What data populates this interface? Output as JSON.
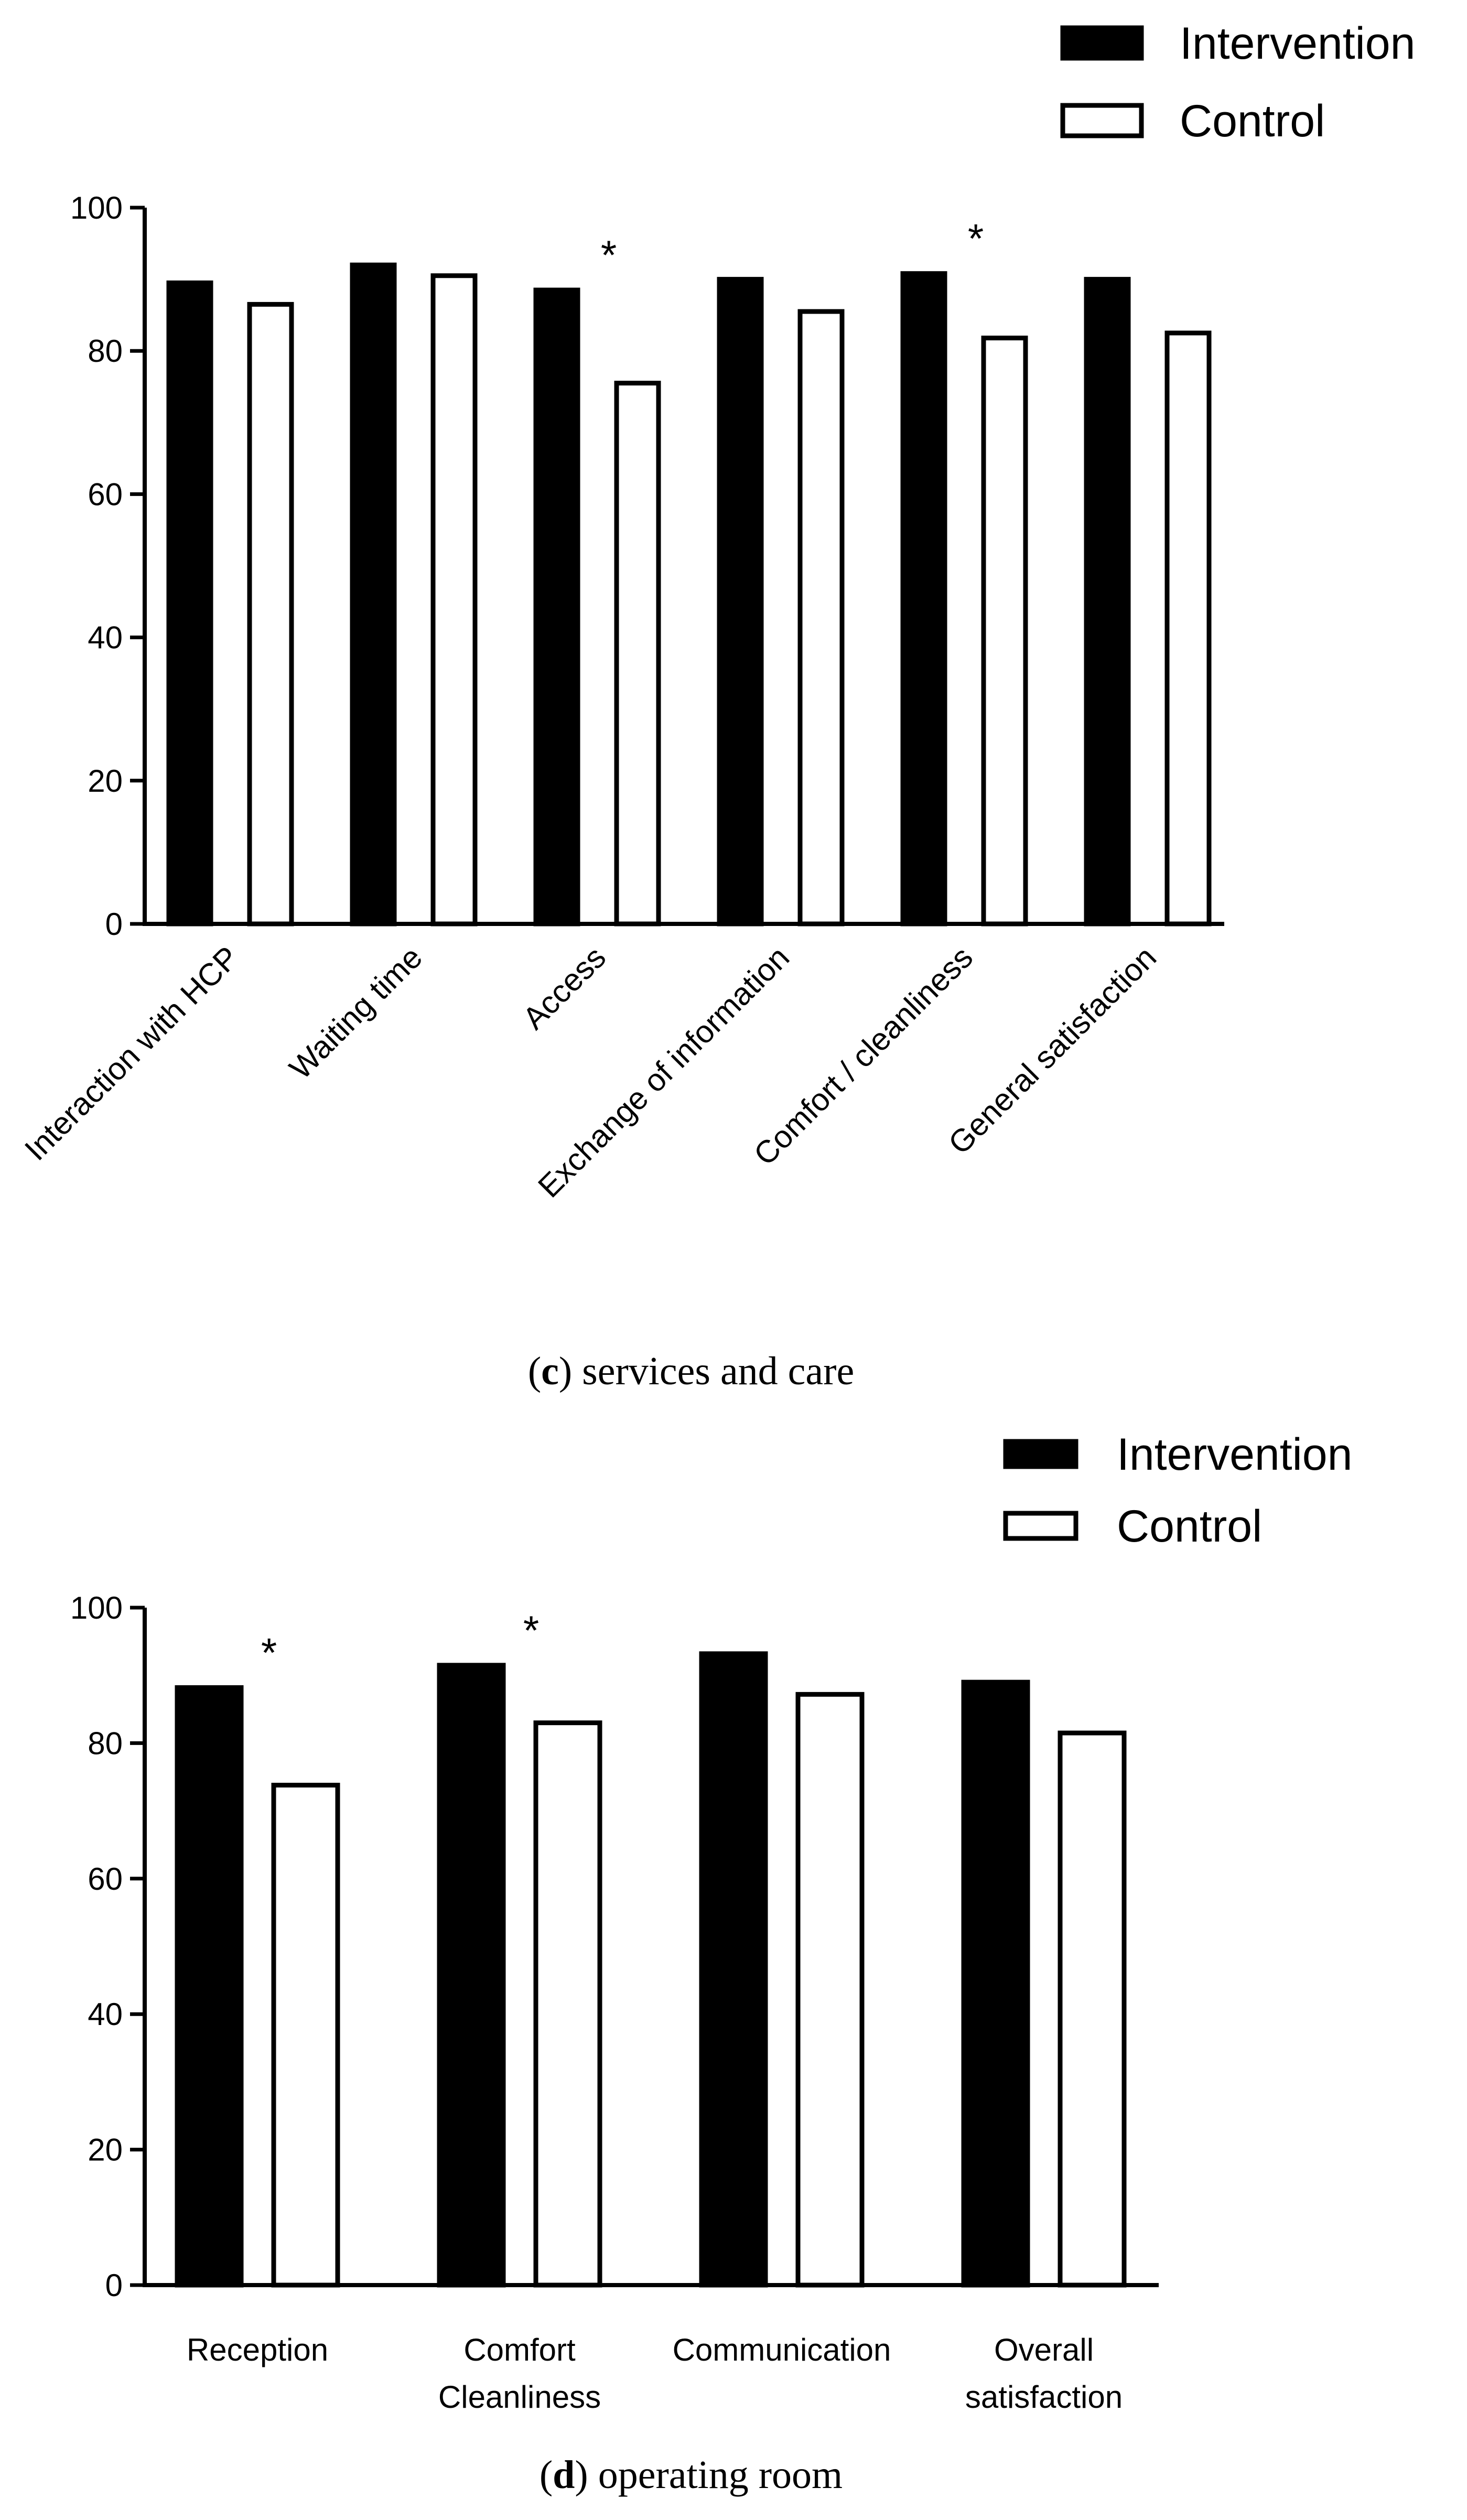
{
  "chart_data": [
    {
      "panel": "c",
      "type": "bar",
      "caption_letter": "c",
      "caption_text": " services and care",
      "caption_open": "(",
      "caption_close": ")",
      "categories": [
        "Interaction with HCP",
        "Waiting time",
        "Access",
        "Exchange of information",
        "Comfort / cleanliness",
        "General satisfaction"
      ],
      "series": [
        {
          "name": "Intervention",
          "fill": "#000000",
          "values": [
            89.5,
            92,
            88.5,
            90,
            90.8,
            90
          ]
        },
        {
          "name": "Control",
          "fill": "#ffffff",
          "values": [
            86.5,
            90.5,
            75.5,
            85.5,
            81.8,
            82.5
          ]
        }
      ],
      "significance": [
        "",
        "",
        "*",
        "",
        "*",
        ""
      ],
      "yticks": [
        0,
        20,
        40,
        60,
        80,
        100
      ],
      "ylim": [
        0,
        100
      ]
    },
    {
      "panel": "d",
      "type": "bar",
      "caption_letter": "d",
      "caption_text": " operating room",
      "caption_open": "(",
      "caption_close": ")",
      "categories": [
        "Reception",
        "Comfort Cleanliness",
        "Communication",
        "Overall satisfaction"
      ],
      "category_lines": [
        [
          "Reception"
        ],
        [
          "Comfort",
          "Cleanliness"
        ],
        [
          "Communication"
        ],
        [
          "Overall",
          "satisfaction"
        ]
      ],
      "series": [
        {
          "name": "Intervention",
          "fill": "#000000",
          "values": [
            88.2,
            91.5,
            93.2,
            89
          ]
        },
        {
          "name": "Control",
          "fill": "#ffffff",
          "values": [
            73.8,
            83,
            87.2,
            81.5
          ]
        }
      ],
      "significance": [
        "*",
        "*",
        "",
        ""
      ],
      "yticks": [
        0,
        20,
        40,
        60,
        80,
        100
      ],
      "ylim": [
        0,
        100
      ]
    }
  ]
}
